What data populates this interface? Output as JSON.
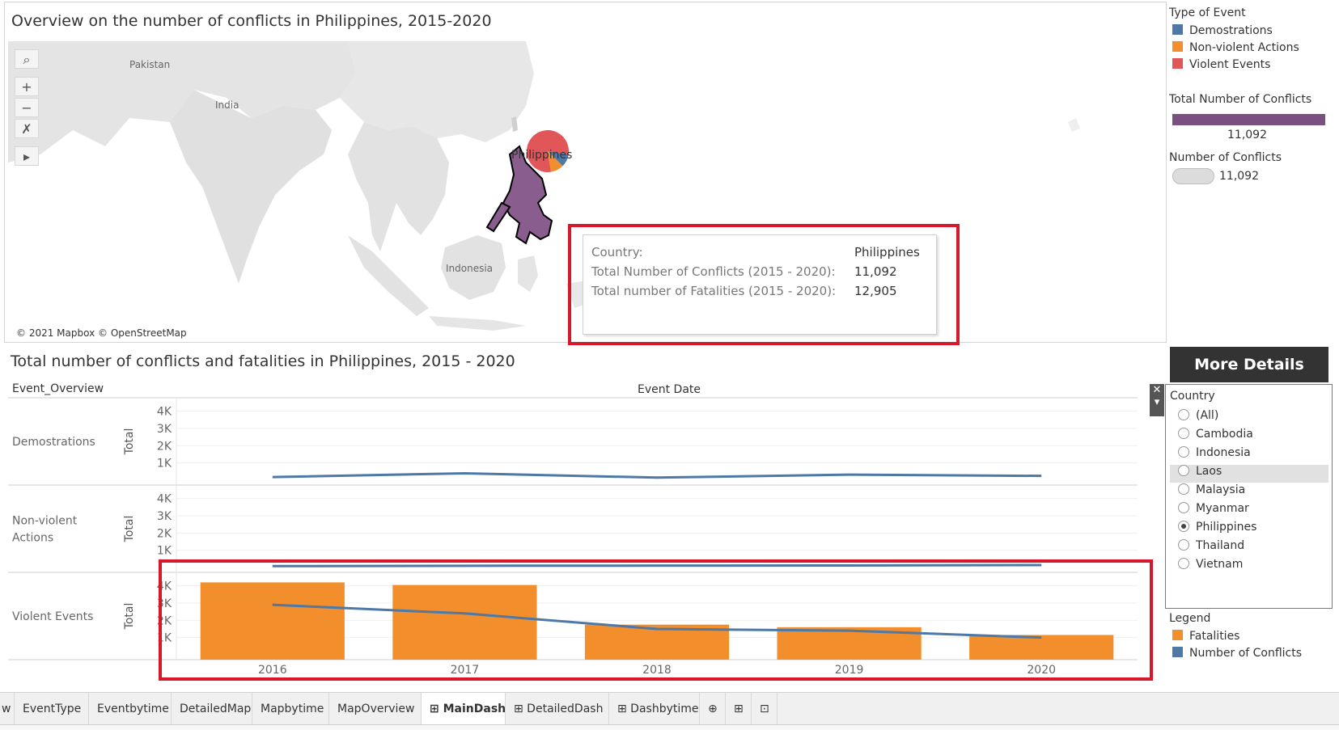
{
  "map": {
    "title": "Overview on the number of conflicts in Philippines, 2015-2020",
    "labels": {
      "pakistan": "Pakistan",
      "india": "India",
      "indonesia": "Indonesia",
      "country_marker": "Philippines"
    },
    "copyright": "© 2021 Mapbox © OpenStreetMap",
    "toolbar": {
      "search_icon": "search-icon",
      "zoom_in": "+",
      "zoom_out": "−",
      "pin_icon": "unpin-icon",
      "expand_icon": "▸"
    },
    "tooltip": {
      "country_key": "Country:",
      "country_value": "Philippines",
      "conflicts_key": "Total Number of Conflicts (2015 - 2020):",
      "conflicts_value": "11,092",
      "fatalities_key": "Total number of Fatalities (2015 - 2020):",
      "fatalities_value": "12,905"
    },
    "pie_share": {
      "violent": 0.8,
      "demonstrations": 0.1,
      "non_violent": 0.1
    }
  },
  "legend_type": {
    "title": "Type of Event",
    "items": [
      {
        "label": "Demostrations",
        "color": "#4e79a7"
      },
      {
        "label": "Non-violent Actions",
        "color": "#f28e2b"
      },
      {
        "label": "Violent Events",
        "color": "#e15759"
      }
    ]
  },
  "legend_total": {
    "title": "Total Number of Conflicts",
    "value": "11,092",
    "color": "#7b4f82"
  },
  "legend_number": {
    "title": "Number of Conflicts",
    "value": "11,092"
  },
  "more_details": "More Details",
  "filter": {
    "title": "Country",
    "options": [
      "(All)",
      "Cambodia",
      "Indonesia",
      "Laos",
      "Malaysia",
      "Myanmar",
      "Philippines",
      "Thailand",
      "Vietnam"
    ],
    "selected": "Philippines",
    "hovered": "Laos"
  },
  "legend_bottom": {
    "title": "Legend",
    "items": [
      {
        "label": "Fatalities",
        "color": "#f28e2b"
      },
      {
        "label": "Number of Conflicts",
        "color": "#4e79a7"
      }
    ]
  },
  "chart_data": {
    "type": "bar",
    "title": "Total number of conflicts and fatalities in Philippines, 2015 - 2020",
    "row_header": "Event_Overview",
    "column_header": "Event Date",
    "ylabel": "Total",
    "categories": [
      "2016",
      "2017",
      "2018",
      "2019",
      "2020"
    ],
    "yticks": [
      "1K",
      "2K",
      "3K",
      "4K"
    ],
    "ylim": [
      0,
      4500
    ],
    "panels": [
      {
        "name": "Demostrations",
        "bars": null,
        "line": [
          180,
          400,
          150,
          320,
          250
        ]
      },
      {
        "name": "Non-violent\nActions",
        "bars": null,
        "line": [
          80,
          100,
          110,
          120,
          140
        ]
      },
      {
        "name": "Violent Events",
        "bars": [
          4200,
          4050,
          1750,
          1600,
          1150
        ],
        "line": [
          2900,
          2400,
          1500,
          1400,
          1000
        ]
      }
    ],
    "bar_color": "#f28e2b",
    "line_color": "#4e79a7"
  },
  "tabs": [
    {
      "label": "w"
    },
    {
      "label": "EventType"
    },
    {
      "label": "Eventbytime"
    },
    {
      "label": "DetailedMap"
    },
    {
      "label": "Mapbytime"
    },
    {
      "label": "MapOverview"
    },
    {
      "label": "⊞ MainDash",
      "active": true
    },
    {
      "label": "⊞ DetailedDash"
    },
    {
      "label": "⊞ Dashbytime"
    },
    {
      "label": "⊕"
    },
    {
      "label": "⊞"
    },
    {
      "label": "⊡"
    }
  ]
}
